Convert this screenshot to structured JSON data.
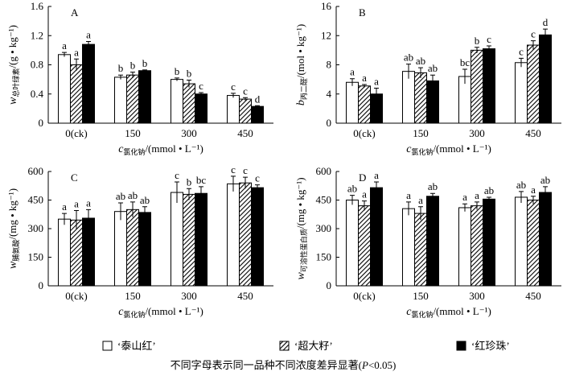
{
  "chart_data": [
    {
      "type": "bar",
      "panel": "A",
      "y_label": "w",
      "y_label_sub": "总叶绿素",
      "y_label_unit": "/(g • kg⁻¹)",
      "x_label": "c",
      "x_label_sub": "氯化钠",
      "x_label_unit": "/(mmol • L⁻¹)",
      "categories": [
        "0(ck)",
        "150",
        "300",
        "450"
      ],
      "ylim": [
        0,
        1.6
      ],
      "yticks": [
        0,
        0.4,
        0.8,
        1.2,
        1.6
      ],
      "series": [
        {
          "name": "‘泰山红’",
          "color": "#ffffff",
          "values": [
            0.94,
            0.63,
            0.6,
            0.38
          ],
          "errors": [
            0.03,
            0.03,
            0.02,
            0.03
          ],
          "letters": [
            "a",
            "b",
            "b",
            "c"
          ]
        },
        {
          "name": "‘超大籽’",
          "color": "#000000",
          "hatch": true,
          "values": [
            0.8,
            0.66,
            0.54,
            0.33
          ],
          "errors": [
            0.08,
            0.04,
            0.05,
            0.02
          ],
          "letters": [
            "a",
            "b",
            "b",
            "c"
          ]
        },
        {
          "name": "‘红珍珠’",
          "color": "#000000",
          "values": [
            1.08,
            0.72,
            0.4,
            0.23
          ],
          "errors": [
            0.04,
            0.01,
            0.02,
            0.01
          ],
          "letters": [
            "a",
            "b",
            "c",
            "d"
          ]
        }
      ]
    },
    {
      "type": "bar",
      "panel": "B",
      "y_label": "b",
      "y_label_sub": "丙二醛",
      "y_label_unit": "/(mol • kg⁻¹)",
      "x_label": "c",
      "x_label_sub": "氯化钠",
      "x_label_unit": "/(mmol • L⁻¹)",
      "categories": [
        "0(ck)",
        "150",
        "300",
        "450"
      ],
      "ylim": [
        0,
        16
      ],
      "yticks": [
        0,
        4,
        8,
        12,
        16
      ],
      "series": [
        {
          "color": "#ffffff",
          "values": [
            5.6,
            7.1,
            6.4,
            8.3
          ],
          "errors": [
            0.5,
            1.0,
            1.0,
            0.6
          ],
          "letters": [
            "a",
            "ab",
            "bc",
            "c"
          ]
        },
        {
          "color": "#000000",
          "hatch": true,
          "values": [
            5.1,
            6.9,
            10.0,
            10.7
          ],
          "errors": [
            0.2,
            0.7,
            0.4,
            0.6
          ],
          "letters": [
            "a",
            "ab",
            "b",
            "c"
          ]
        },
        {
          "color": "#000000",
          "values": [
            4.0,
            5.8,
            10.2,
            12.1
          ],
          "errors": [
            0.8,
            0.8,
            0.4,
            0.8
          ],
          "letters": [
            "a",
            "ab",
            "c",
            "d"
          ]
        }
      ]
    },
    {
      "type": "bar",
      "panel": "C",
      "y_label": "w",
      "y_label_sub": "脯氨酸",
      "y_label_unit": "/(mg • kg⁻¹)",
      "x_label": "c",
      "x_label_sub": "氯化钠",
      "x_label_unit": "/(mmol • L⁻¹)",
      "categories": [
        "0(ck)",
        "150",
        "300",
        "450"
      ],
      "ylim": [
        0,
        600
      ],
      "yticks": [
        0,
        150,
        300,
        450,
        600
      ],
      "series": [
        {
          "color": "#ffffff",
          "values": [
            350,
            390,
            490,
            535
          ],
          "errors": [
            30,
            45,
            55,
            40
          ],
          "letters": [
            "a",
            "ab",
            "c",
            "c"
          ]
        },
        {
          "color": "#000000",
          "hatch": true,
          "values": [
            345,
            400,
            480,
            540
          ],
          "errors": [
            50,
            40,
            30,
            30
          ],
          "letters": [
            "a",
            "ab",
            "b",
            "c"
          ]
        },
        {
          "color": "#000000",
          "values": [
            355,
            385,
            485,
            515
          ],
          "errors": [
            45,
            30,
            35,
            15
          ],
          "letters": [
            "a",
            "ab",
            "bc",
            "c"
          ]
        }
      ]
    },
    {
      "type": "bar",
      "panel": "D",
      "y_label": "w",
      "y_label_sub": "可溶性蛋白质",
      "y_label_unit": "/(mg • kg⁻¹)",
      "x_label": "c",
      "x_label_sub": "氯化钠",
      "x_label_unit": "/(mmol • L⁻¹)",
      "categories": [
        "0(ck)",
        "150",
        "300",
        "450"
      ],
      "ylim": [
        0,
        600
      ],
      "yticks": [
        0,
        150,
        300,
        450,
        600
      ],
      "series": [
        {
          "color": "#ffffff",
          "values": [
            450,
            405,
            410,
            465
          ],
          "errors": [
            25,
            35,
            20,
            30
          ],
          "letters": [
            "ab",
            "a",
            "a",
            "ab"
          ]
        },
        {
          "color": "#000000",
          "hatch": true,
          "values": [
            420,
            380,
            420,
            450
          ],
          "errors": [
            25,
            35,
            20,
            20
          ],
          "letters": [
            "a",
            "a",
            "a",
            "a"
          ]
        },
        {
          "color": "#000000",
          "values": [
            515,
            470,
            455,
            490
          ],
          "errors": [
            30,
            15,
            10,
            30
          ],
          "letters": [
            "a",
            "ab",
            "ab",
            "ab"
          ]
        }
      ]
    }
  ],
  "note": "不同字母表示同一品种不同浓度差异显著(",
  "note_p": "P",
  "note_end": "<0.05)"
}
